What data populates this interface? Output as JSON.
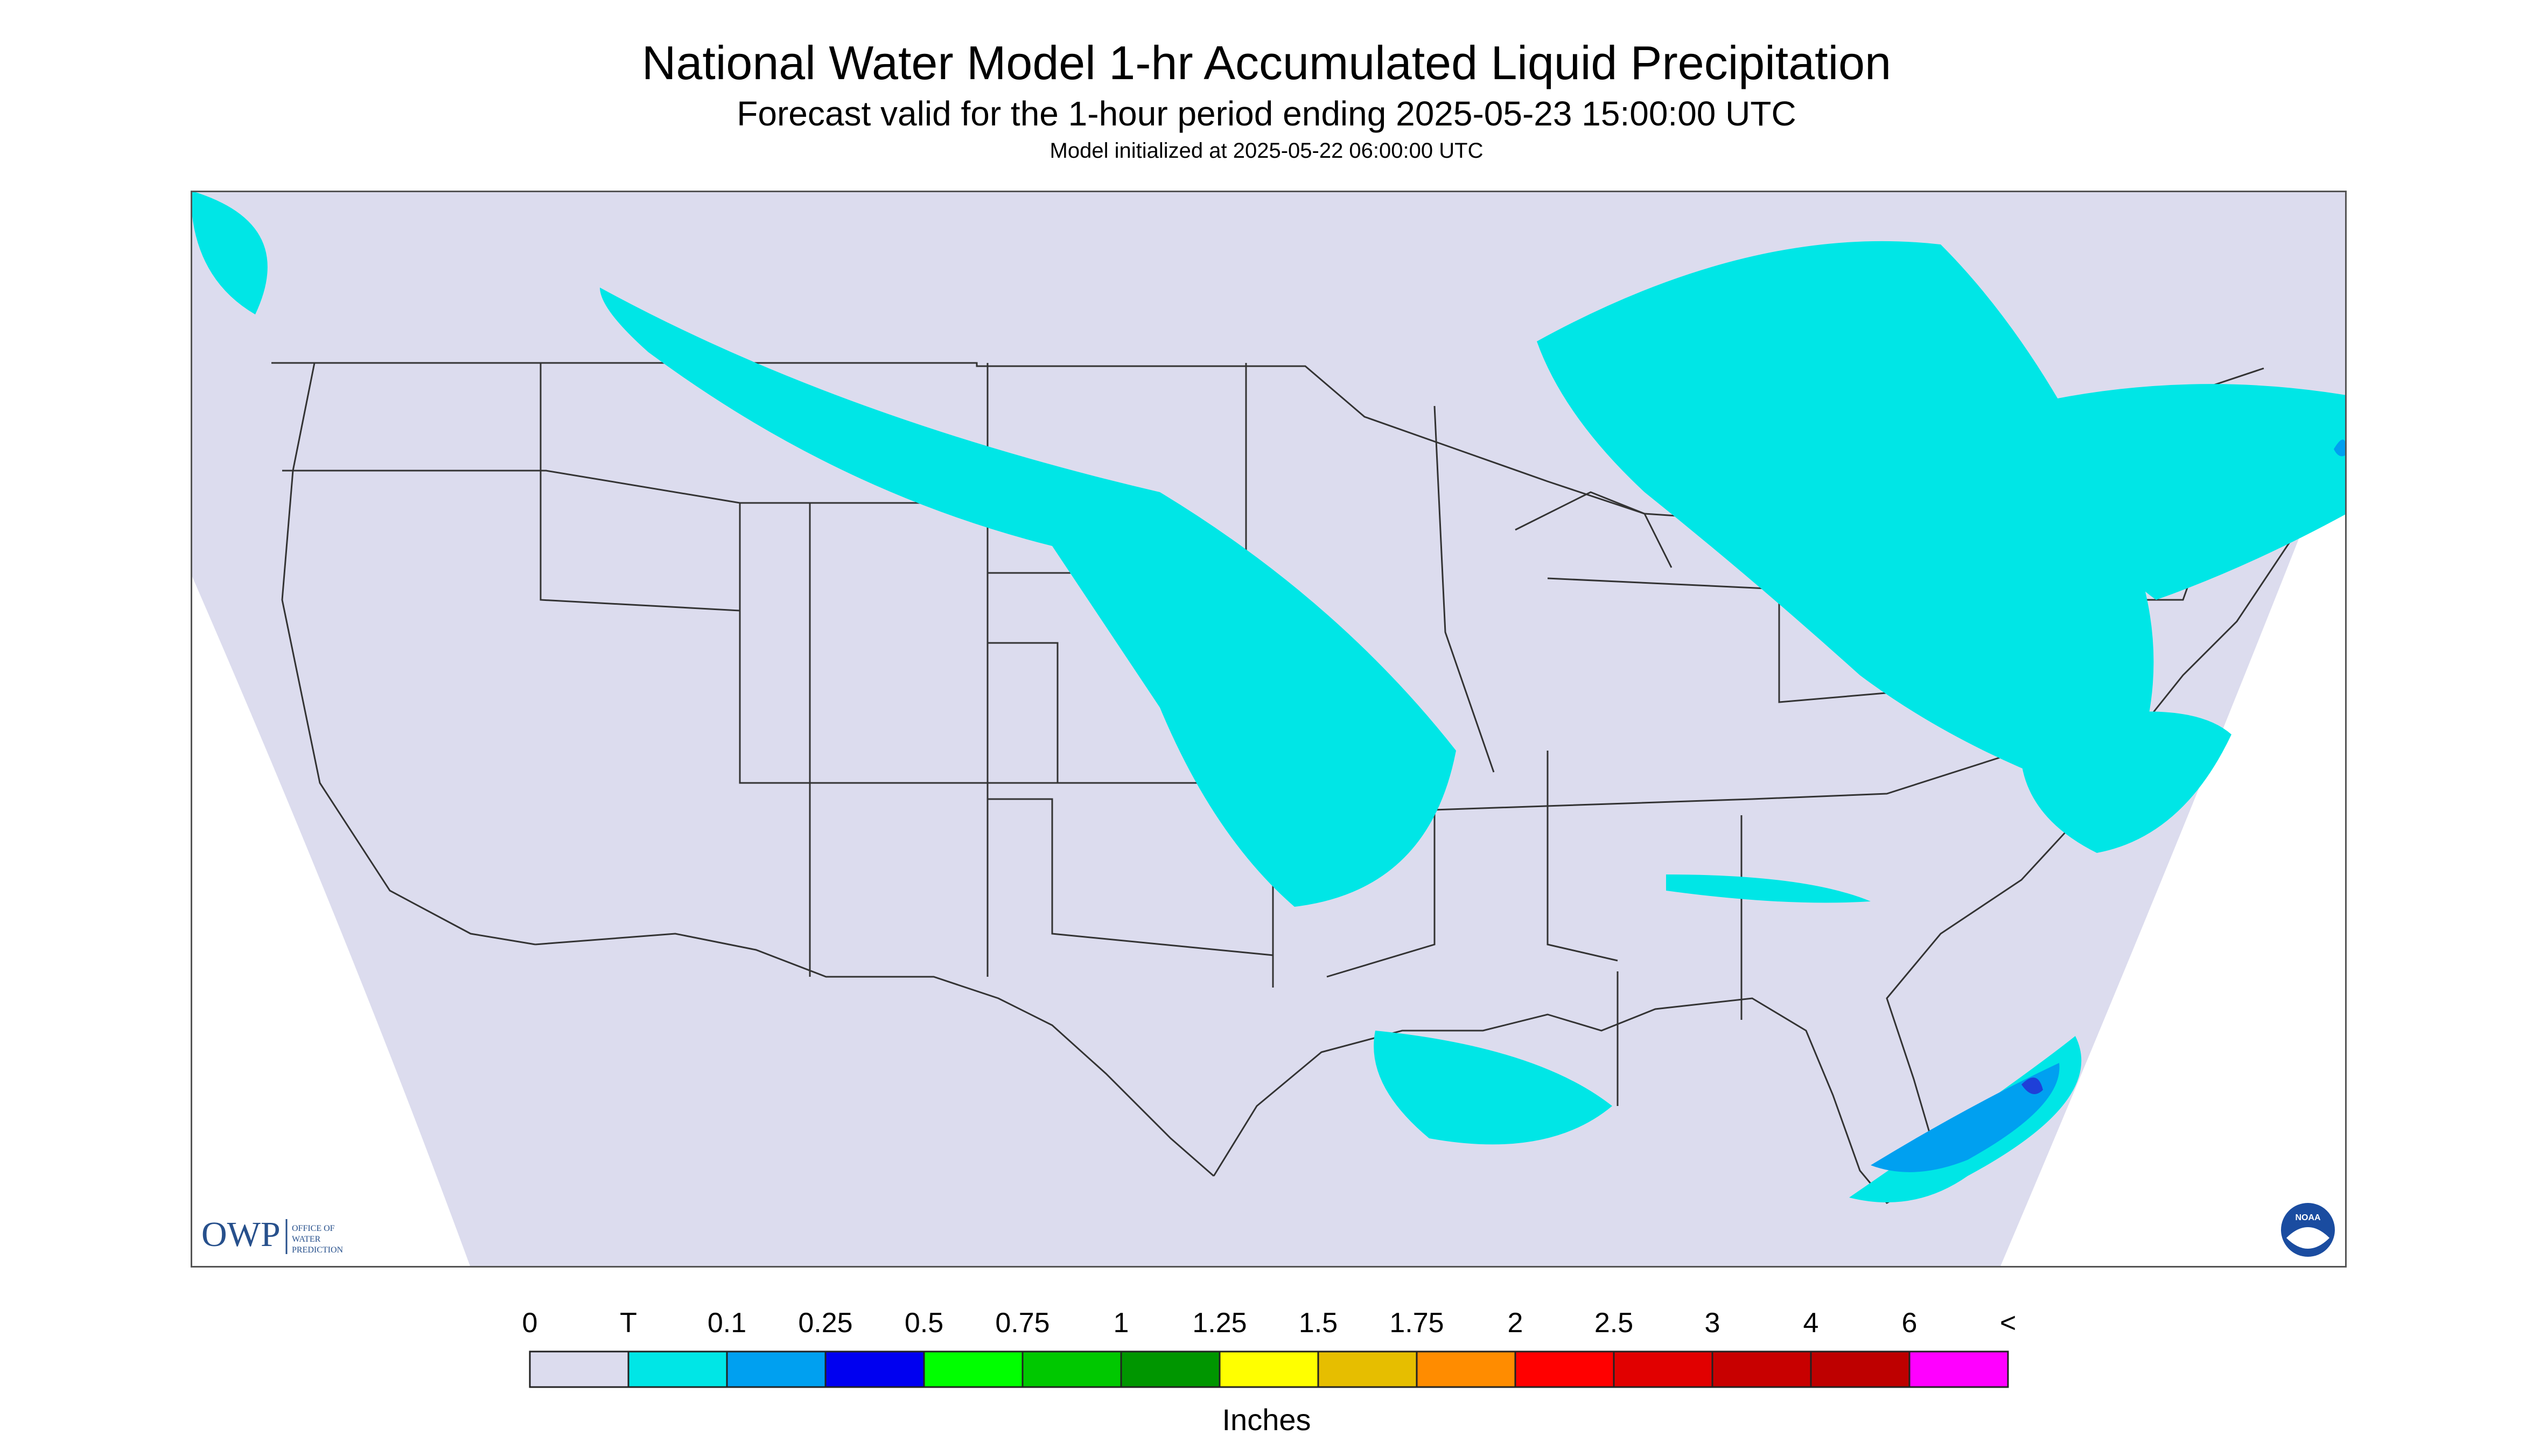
{
  "header": {
    "title": "National Water Model 1-hr Accumulated Liquid Precipitation",
    "subtitle": "Forecast valid for the 1-hour period ending 2025-05-23 15:00:00 UTC",
    "init_line": "Model initialized at 2025-05-22 06:00:00 UTC"
  },
  "map": {
    "background_color": "#dcdcee",
    "boundary_color": "#333333",
    "light_precip_color": "#00e6e6",
    "moderate_precip_color": "#00a0f0",
    "heavy_precip_color": "#1f3fd8"
  },
  "logos": {
    "owp_text": "OWP",
    "owp_line1": "OFFICE OF",
    "owp_line2": "WATER",
    "owp_line3": "PREDICTION",
    "noaa_text": "NOAA"
  },
  "legend": {
    "units": "Inches",
    "labels": [
      "0",
      "T",
      "0.1",
      "0.25",
      "0.5",
      "0.75",
      "1",
      "1.25",
      "1.5",
      "1.75",
      "2",
      "2.5",
      "3",
      "4",
      "6",
      "<"
    ],
    "colors": [
      "#dcdcee",
      "#00e6e6",
      "#00a0f0",
      "#0000f0",
      "#00ff00",
      "#00c800",
      "#009600",
      "#ffff00",
      "#e6be00",
      "#ff8c00",
      "#ff0000",
      "#e10000",
      "#c80000",
      "#be0000",
      "#ff00ff",
      "#9650c8"
    ]
  }
}
